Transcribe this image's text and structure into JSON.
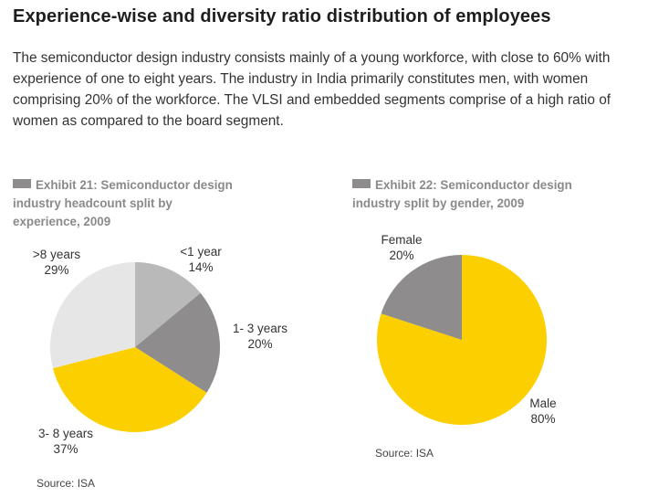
{
  "heading": "Experience-wise and diversity ratio distribution of employees",
  "intro": "The semiconductor design industry consists mainly of a young workforce, with close to 60% with experience of one to eight years. The industry in India primarily constitutes men, with women comprising 20% of the workforce. The VLSI and embedded segments comprise of a high ratio of women as compared to the board segment.",
  "exhibits": [
    {
      "title_line1": "Exhibit 21: Semiconductor design",
      "title_line2": "industry headcount split by",
      "title_line3": "experience, 2009",
      "source": "Source: ISA"
    },
    {
      "title_line1": "Exhibit 22: Semiconductor design",
      "title_line2": "industry split by gender, 2009",
      "title_line3": "",
      "source": "Source: ISA"
    }
  ],
  "chart_data": [
    {
      "type": "pie",
      "title": "Exhibit 21: Semiconductor design industry headcount split by experience, 2009",
      "slices": [
        {
          "label": "<1 year",
          "value": 14,
          "value_label": "14%",
          "color": "#b9b9b9"
        },
        {
          "label": "1- 3 years",
          "value": 20,
          "value_label": "20%",
          "color": "#8e8c8c"
        },
        {
          "label": "3- 8 years",
          "value": 37,
          "value_label": "37%",
          "color": "#fcd000"
        },
        {
          "label": ">8 years",
          "value": 29,
          "value_label": "29%",
          "color": "#e6e6e6"
        }
      ]
    },
    {
      "type": "pie",
      "title": "Exhibit 22: Semiconductor design industry split by gender, 2009",
      "slices": [
        {
          "label": "Male",
          "value": 80,
          "value_label": "80%",
          "color": "#fcd000"
        },
        {
          "label": "Female",
          "value": 20,
          "value_label": "20%",
          "color": "#8e8c8c"
        }
      ]
    }
  ]
}
